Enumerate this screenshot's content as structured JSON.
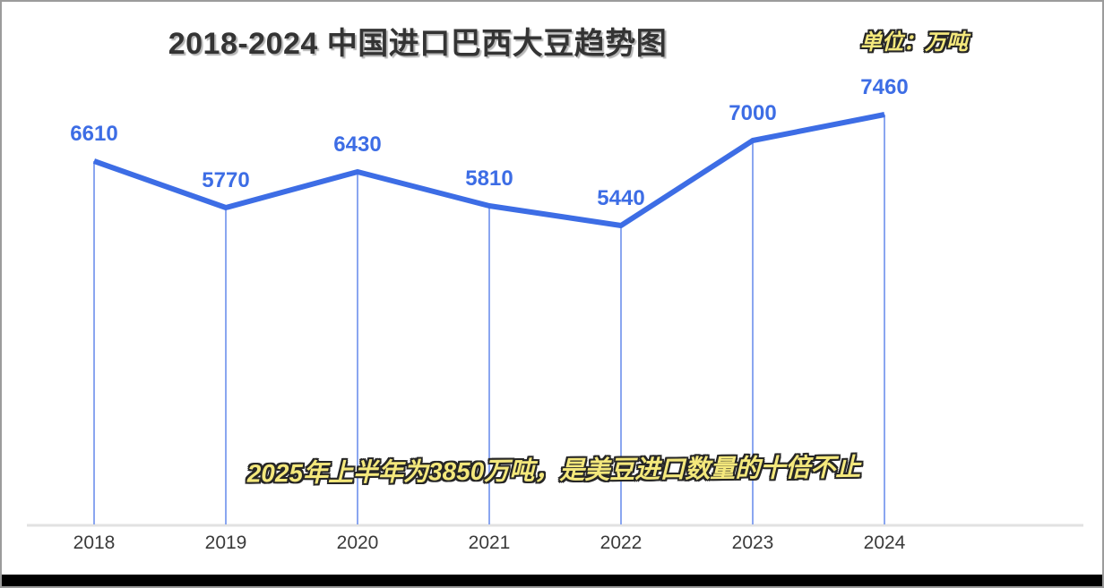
{
  "title": "2018-2024 中国进口巴西大豆趋势图",
  "unit_label": "单位：万吨",
  "annotation": "2025年上半年为3850万吨，是美豆进口数量的十倍不止",
  "colors": {
    "trend_line": "#3d6de5",
    "drop_line": "#8aa6f0",
    "value_label": "#3d6de5",
    "axis_line": "#e2e2e2",
    "title_text": "#343434",
    "x_label_text": "#3a3a3a",
    "highlight_fill": "#f4e87c",
    "highlight_outline": "#262626",
    "bottom_bar": "#000000"
  },
  "chart_data": {
    "type": "line",
    "categories": [
      "2018",
      "2019",
      "2020",
      "2021",
      "2022",
      "2023",
      "2024"
    ],
    "values": [
      6610,
      5770,
      6430,
      5810,
      5440,
      7000,
      7460
    ],
    "title": "2018-2024 中国进口巴西大豆趋势图",
    "unit": "万吨",
    "xlabel": "",
    "ylabel": "",
    "ylim": [
      0,
      9500
    ],
    "grid": false,
    "legend": "none",
    "data_labels": true,
    "drop_lines": true,
    "annotations": [
      "2025年上半年为3850万吨，是美豆进口数量的十倍不止"
    ]
  }
}
